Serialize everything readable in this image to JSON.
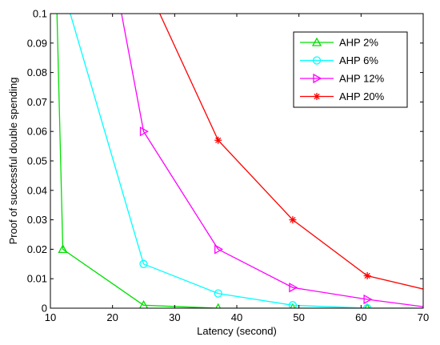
{
  "chart_data": {
    "type": "line",
    "xlabel": "Latency (second)",
    "ylabel": "Proof of successful double spending",
    "xlim": [
      10,
      70
    ],
    "ylim": [
      0,
      0.1
    ],
    "xticks": [
      10,
      20,
      30,
      40,
      50,
      60,
      70
    ],
    "xtick_labels": [
      "10",
      "20",
      "30",
      "40",
      "50",
      "60",
      "70"
    ],
    "yticks": [
      0,
      0.01,
      0.02,
      0.03,
      0.04,
      0.05,
      0.06,
      0.07,
      0.08,
      0.09,
      0.1
    ],
    "ytick_labels": [
      "0",
      "0.01",
      "0.02",
      "0.03",
      "0.04",
      "0.05",
      "0.06",
      "0.07",
      "0.08",
      "0.09",
      "0.1"
    ],
    "grid": false,
    "legend_position": "top-right",
    "series": [
      {
        "name": "AHP 2%",
        "color": "#00e000",
        "marker": "triangle-up",
        "x": [
          11,
          12,
          25,
          37,
          49,
          61,
          70
        ],
        "y": [
          0.105,
          0.02,
          0.001,
          0,
          0,
          0,
          0
        ],
        "marker_x": [
          12,
          25,
          37,
          49,
          61
        ],
        "marker_y": [
          0.02,
          0.001,
          0,
          0,
          0
        ]
      },
      {
        "name": "AHP 6%",
        "color": "#00ffff",
        "marker": "circle",
        "x": [
          12.5,
          25,
          37,
          49,
          61,
          70
        ],
        "y": [
          0.105,
          0.015,
          0.005,
          0.001,
          0,
          0
        ],
        "marker_x": [
          25,
          37,
          49,
          61
        ],
        "marker_y": [
          0.015,
          0.005,
          0.001,
          0
        ]
      },
      {
        "name": "AHP 12%",
        "color": "#ff00ff",
        "marker": "triangle-right",
        "x": [
          21,
          25,
          37,
          49,
          61,
          70
        ],
        "y": [
          0.105,
          0.06,
          0.02,
          0.007,
          0.003,
          0.0005
        ],
        "marker_x": [
          25,
          37,
          49,
          61
        ],
        "marker_y": [
          0.06,
          0.02,
          0.007,
          0.003
        ]
      },
      {
        "name": "AHP 20%",
        "color": "#ff0000",
        "marker": "asterisk",
        "x": [
          26.5,
          37,
          49,
          61,
          70
        ],
        "y": [
          0.105,
          0.057,
          0.03,
          0.011,
          0.0065
        ],
        "marker_x": [
          37,
          49,
          61
        ],
        "marker_y": [
          0.057,
          0.03,
          0.011
        ]
      }
    ]
  }
}
